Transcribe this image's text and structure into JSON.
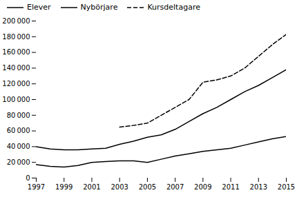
{
  "chart_data": {
    "type": "line",
    "x": [
      1997,
      1998,
      1999,
      2000,
      2001,
      2002,
      2003,
      2004,
      2005,
      2006,
      2007,
      2008,
      2009,
      2010,
      2011,
      2012,
      2013,
      2014,
      2015
    ],
    "series": [
      {
        "name": "Elever",
        "line_style": "solid",
        "values": [
          40000,
          37000,
          36000,
          36000,
          37000,
          38000,
          43000,
          47000,
          52000,
          55000,
          62000,
          72000,
          82000,
          90000,
          100000,
          110000,
          118000,
          128000,
          138000
        ]
      },
      {
        "name": "Nybörjare",
        "line_style": "solid",
        "values": [
          17000,
          15000,
          14000,
          16000,
          20000,
          21000,
          22000,
          22000,
          20000,
          24000,
          28000,
          31000,
          34000,
          36000,
          38000,
          42000,
          46000,
          50000,
          53000
        ]
      },
      {
        "name": "Kursdeltagare",
        "line_style": "dashed",
        "values": [
          null,
          null,
          null,
          null,
          null,
          null,
          65000,
          67000,
          70000,
          80000,
          90000,
          100000,
          122000,
          125000,
          130000,
          140000,
          155000,
          170000,
          183000
        ]
      }
    ],
    "xlim": [
      1997,
      2015
    ],
    "ylim": [
      0,
      200000
    ],
    "xticks": [
      1997,
      1999,
      2001,
      2003,
      2005,
      2007,
      2009,
      2011,
      2013,
      2015
    ],
    "yticks": [
      0,
      {
        "value": 20000,
        "label": "20 000"
      },
      {
        "value": 40000,
        "label": "40 000"
      },
      {
        "value": 60000,
        "label": "60 000"
      },
      {
        "value": 80000,
        "label": "80 000"
      },
      {
        "value": 100000,
        "label": "100 000"
      },
      {
        "value": 120000,
        "label": "120 000"
      },
      {
        "value": 140000,
        "label": "140 000"
      },
      {
        "value": 160000,
        "label": "160 000"
      },
      {
        "value": 180000,
        "label": "180 000"
      },
      {
        "value": 200000,
        "label": "200 000"
      }
    ],
    "legend": "upper left"
  }
}
